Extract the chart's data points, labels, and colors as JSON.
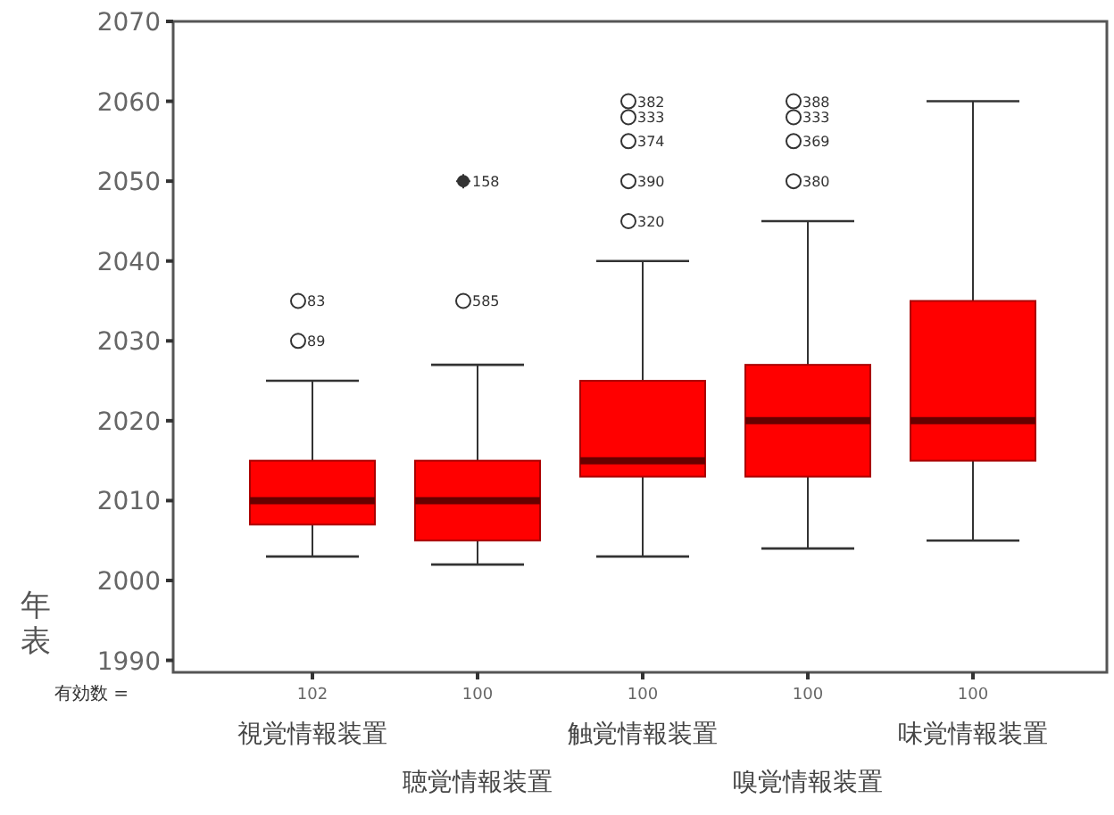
{
  "chart_data": {
    "type": "box",
    "ylabel": "年表",
    "categories": [
      "視覚情報装置",
      "聴覚情報装置",
      "触覚情報装置",
      "嗅覚情報装置",
      "味覚情報装置"
    ],
    "color": "#ff0000",
    "boxes": [
      {
        "low": 2003,
        "q1": 2007,
        "median": 2010,
        "q3": 2015,
        "high": 2025,
        "outliers": [
          2035,
          2030
        ]
      },
      {
        "low": 2002,
        "q1": 2005,
        "median": 2010,
        "q3": 2015,
        "high": 2027,
        "outliers": [
          2050,
          2035
        ]
      },
      {
        "low": 2003,
        "q1": 2013,
        "median": 2015,
        "q3": 2025,
        "high": 2040,
        "outliers": [
          2060,
          2058,
          2055,
          2050,
          2045
        ]
      },
      {
        "low": 2004,
        "q1": 2013,
        "median": 2020,
        "q3": 2027,
        "high": 2045,
        "outliers": [
          2060,
          2058,
          2055,
          2050
        ]
      },
      {
        "low": 2005,
        "q1": 2015,
        "median": 2020,
        "q3": 2035,
        "high": 2060
      }
    ],
    "ylim": [
      1988.5,
      2070
    ],
    "yticks": [
      1990,
      2000,
      2010,
      2020,
      2030,
      2040,
      2050,
      2060,
      2070
    ],
    "annotations": [
      "有効数 =",
      "102",
      "100",
      "100",
      "100",
      "100",
      "83",
      "89",
      "158",
      "585",
      "382",
      "333",
      "374",
      "390",
      "320",
      "388",
      "333",
      "369",
      "380"
    ]
  }
}
